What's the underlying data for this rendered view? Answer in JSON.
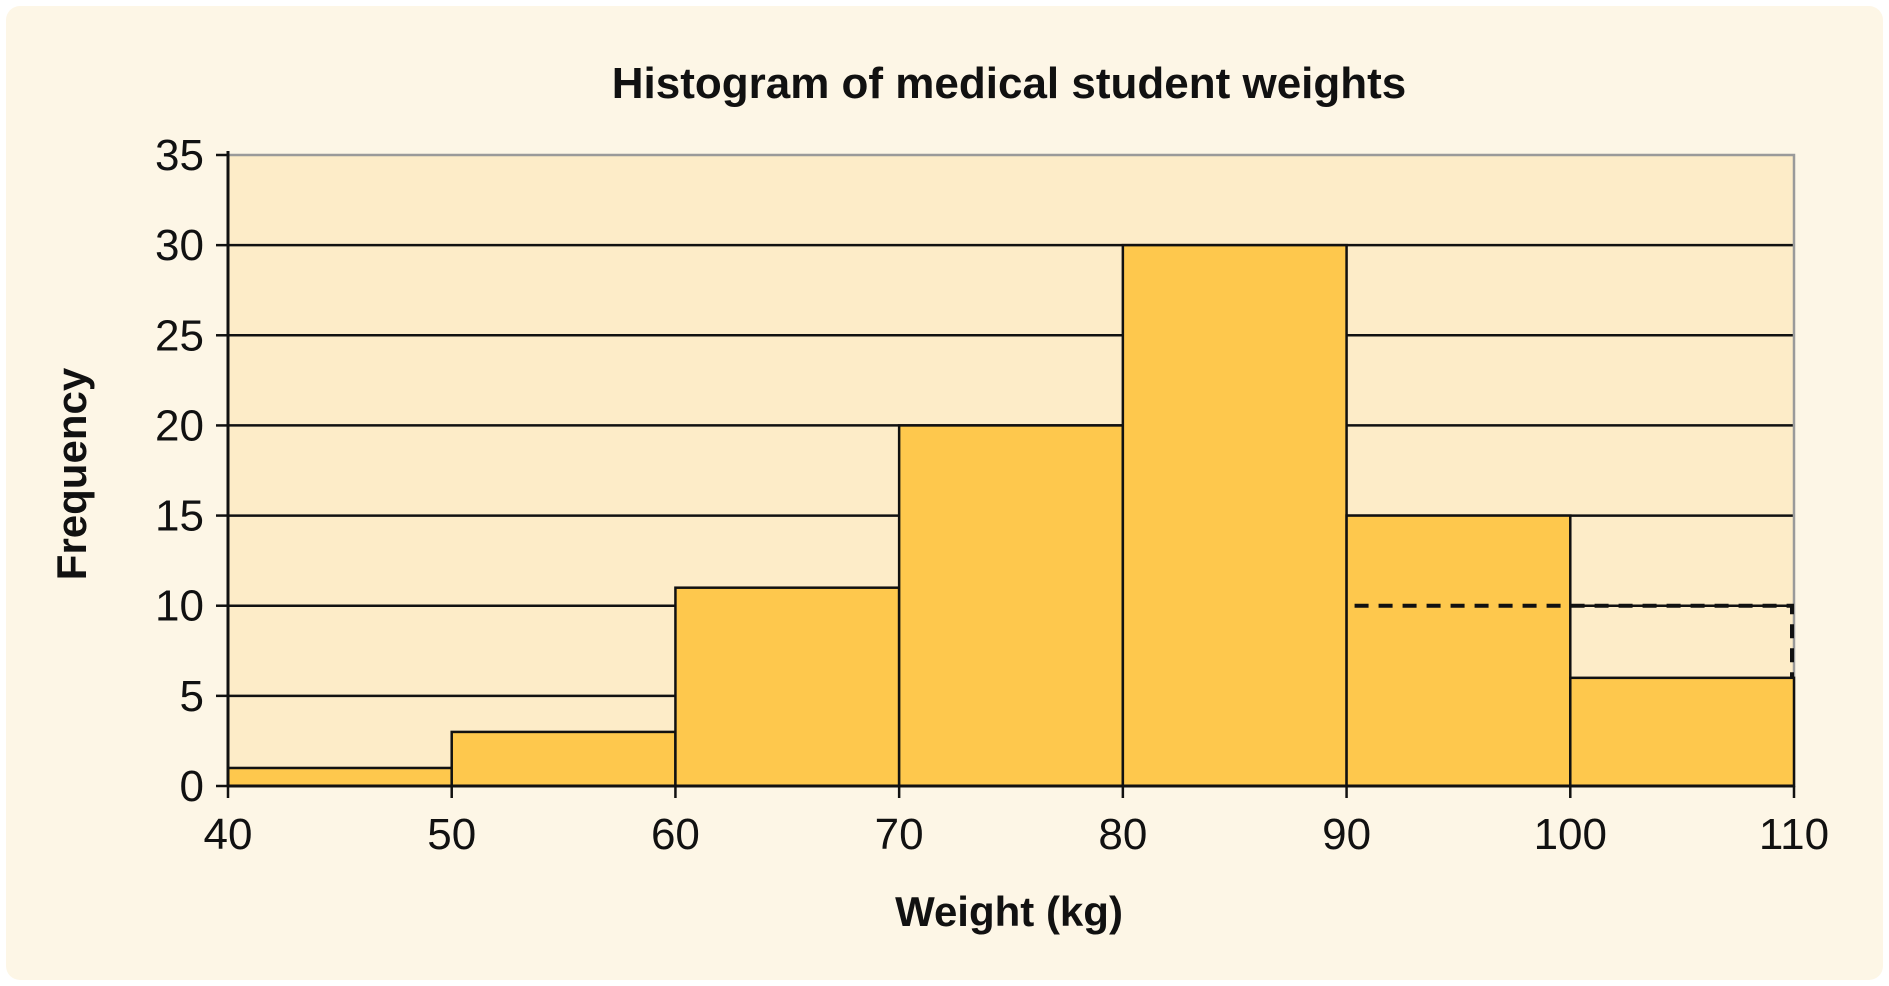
{
  "chart_data": {
    "type": "bar",
    "subtype": "histogram",
    "title": "Histogram of medical student weights",
    "xlabel": "Weight (kg)",
    "ylabel": "Frequency",
    "bins": [
      {
        "from": 40,
        "to": 50,
        "value": 1
      },
      {
        "from": 50,
        "to": 60,
        "value": 3
      },
      {
        "from": 60,
        "to": 70,
        "value": 11
      },
      {
        "from": 70,
        "to": 80,
        "value": 20
      },
      {
        "from": 80,
        "to": 90,
        "value": 30
      },
      {
        "from": 90,
        "to": 100,
        "value": 15
      },
      {
        "from": 100,
        "to": 110,
        "value": 6
      }
    ],
    "dashed_outline": {
      "from": 90,
      "to": 110,
      "value": 10
    },
    "xlim": [
      40,
      110
    ],
    "ylim": [
      0,
      35
    ],
    "x_ticks": [
      40,
      50,
      60,
      70,
      80,
      90,
      100,
      110
    ],
    "y_ticks": [
      0,
      5,
      10,
      15,
      20,
      25,
      30,
      35
    ],
    "grid": "horizontal",
    "colors": {
      "panel_background": "#fdf6e6",
      "plot_background": "#fdecc8",
      "bar_fill": "#fec84d",
      "bar_stroke": "#111111",
      "grid": "#111111",
      "plot_border": "#9a9a9a"
    }
  }
}
